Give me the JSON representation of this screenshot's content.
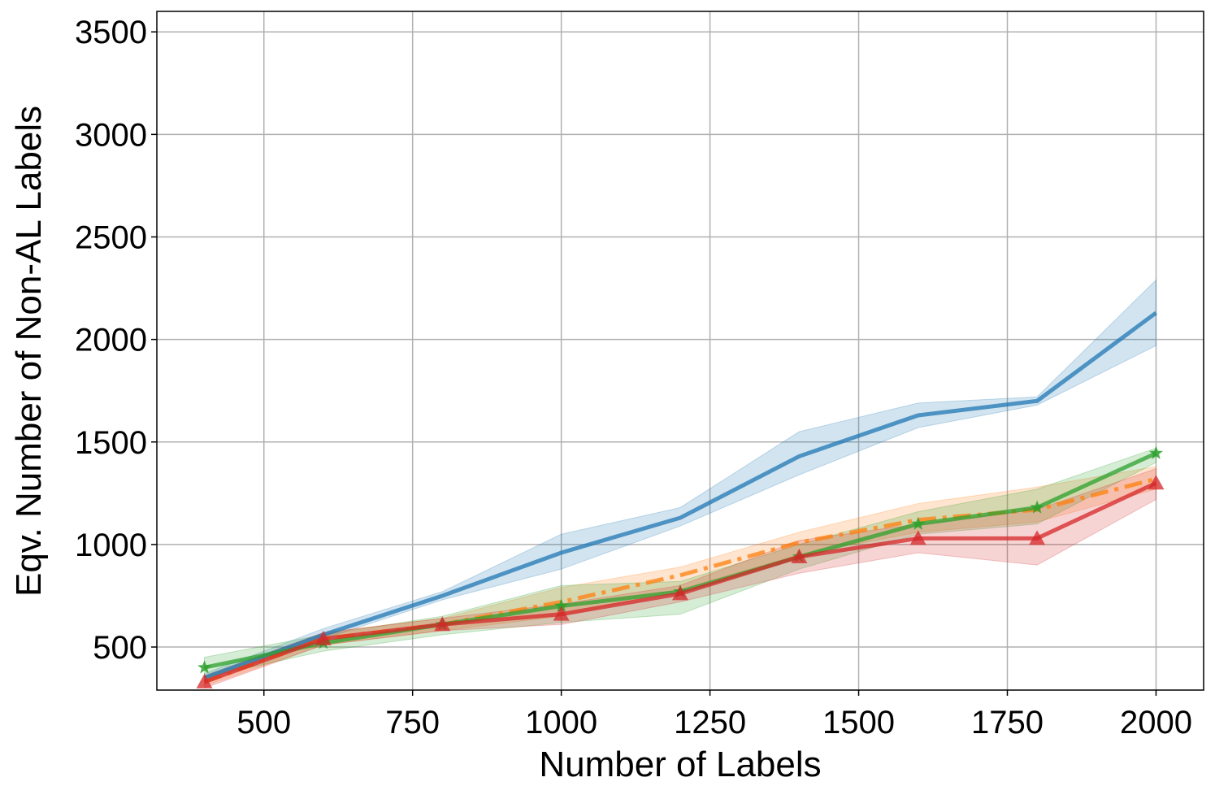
{
  "chart_data": {
    "type": "line",
    "xlabel": "Number of Labels",
    "ylabel": "Eqv. Number of Non-AL Labels",
    "x": [
      400,
      600,
      800,
      1000,
      1200,
      1400,
      1600,
      1800,
      2000
    ],
    "xlim": [
      320,
      2080
    ],
    "xticks": [
      500,
      750,
      1000,
      1250,
      1500,
      1750,
      2000
    ],
    "ylim": [
      290,
      3600
    ],
    "yticks": [
      500,
      1000,
      1500,
      2000,
      2500,
      3000,
      3500
    ],
    "grid": true,
    "series": [
      {
        "color": "#1f77b4",
        "marker": "none",
        "dash": "solid",
        "values": [
          350,
          560,
          750,
          960,
          1130,
          1430,
          1630,
          1700,
          2130
        ],
        "lower": [
          335,
          540,
          730,
          880,
          1090,
          1340,
          1570,
          1680,
          1970
        ],
        "upper": [
          370,
          590,
          770,
          1050,
          1180,
          1550,
          1690,
          1720,
          2290
        ]
      },
      {
        "color": "#ff7f0e",
        "marker": "none",
        "dash": "dashdot",
        "values": [
          330,
          540,
          610,
          720,
          850,
          1010,
          1120,
          1170,
          1320
        ],
        "lower": [
          310,
          510,
          580,
          650,
          780,
          950,
          1060,
          1110,
          1270
        ],
        "upper": [
          350,
          570,
          640,
          790,
          890,
          1060,
          1200,
          1280,
          1380
        ]
      },
      {
        "color": "#2ca02c",
        "marker": "star",
        "dash": "solid",
        "values": [
          400,
          520,
          610,
          700,
          770,
          940,
          1100,
          1180,
          1445
        ],
        "lower": [
          350,
          480,
          560,
          620,
          660,
          880,
          1050,
          1100,
          1400
        ],
        "upper": [
          450,
          560,
          650,
          800,
          820,
          1000,
          1160,
          1270,
          1470
        ]
      },
      {
        "color": "#d62728",
        "marker": "triangle",
        "dash": "solid",
        "values": [
          330,
          540,
          610,
          660,
          760,
          940,
          1030,
          1030,
          1300
        ],
        "lower": [
          300,
          510,
          580,
          610,
          720,
          860,
          960,
          900,
          1220
        ],
        "upper": [
          360,
          570,
          640,
          710,
          800,
          1020,
          1100,
          1170,
          1370
        ]
      }
    ]
  }
}
